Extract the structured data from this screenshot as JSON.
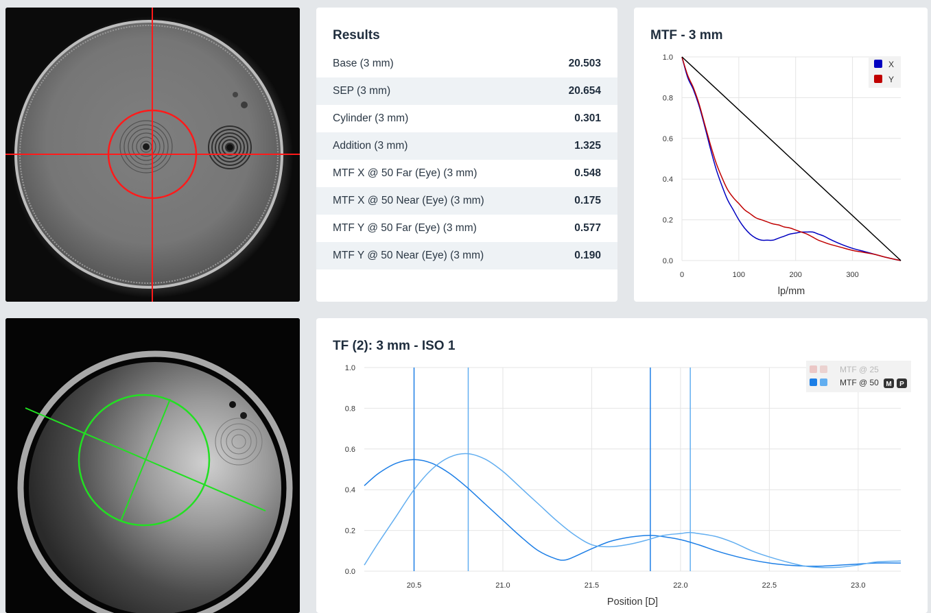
{
  "results": {
    "title": "Results",
    "rows": [
      {
        "label": "Base (3 mm)",
        "value": "20.503"
      },
      {
        "label": "SEP (3 mm)",
        "value": "20.654"
      },
      {
        "label": "Cylinder (3 mm)",
        "value": "0.301"
      },
      {
        "label": "Addition (3 mm)",
        "value": "1.325"
      },
      {
        "label": "MTF X @ 50 Far (Eye) (3 mm)",
        "value": "0.548"
      },
      {
        "label": "MTF X @ 50 Near (Eye) (3 mm)",
        "value": "0.175"
      },
      {
        "label": "MTF Y @ 50 Far (Eye) (3 mm)",
        "value": "0.577"
      },
      {
        "label": "MTF Y @ 50 Near (Eye) (3 mm)",
        "value": "0.190"
      }
    ]
  },
  "chart_data": [
    {
      "type": "line",
      "title": "MTF - 3 mm",
      "xlabel": "lp/mm",
      "ylabel": "",
      "xlim": [
        0,
        385
      ],
      "ylim": [
        0,
        1
      ],
      "xticks": [
        "0",
        "100",
        "200",
        "300"
      ],
      "yticks": [
        "0.0",
        "0.2",
        "0.4",
        "0.6",
        "0.8",
        "1.0"
      ],
      "grid": true,
      "legend": "top-right",
      "series": [
        {
          "name": "X",
          "color": "#0000c0",
          "x": [
            0,
            10,
            20,
            30,
            40,
            50,
            60,
            70,
            80,
            90,
            100,
            110,
            120,
            130,
            140,
            150,
            160,
            170,
            180,
            190,
            200,
            210,
            220,
            230,
            240,
            250,
            260,
            280,
            300,
            320,
            340,
            360,
            385
          ],
          "y": [
            1.0,
            0.9,
            0.84,
            0.76,
            0.66,
            0.55,
            0.45,
            0.37,
            0.3,
            0.25,
            0.2,
            0.16,
            0.13,
            0.11,
            0.1,
            0.1,
            0.1,
            0.11,
            0.12,
            0.13,
            0.135,
            0.14,
            0.14,
            0.14,
            0.13,
            0.12,
            0.105,
            0.08,
            0.06,
            0.045,
            0.03,
            0.015,
            0.0
          ]
        },
        {
          "name": "Y",
          "color": "#c00000",
          "x": [
            0,
            10,
            20,
            30,
            40,
            50,
            60,
            70,
            80,
            90,
            100,
            110,
            120,
            130,
            140,
            150,
            160,
            170,
            180,
            190,
            200,
            210,
            220,
            230,
            240,
            250,
            260,
            280,
            300,
            320,
            340,
            360,
            385
          ],
          "y": [
            1.0,
            0.91,
            0.85,
            0.77,
            0.67,
            0.57,
            0.48,
            0.41,
            0.35,
            0.31,
            0.28,
            0.25,
            0.23,
            0.21,
            0.2,
            0.19,
            0.18,
            0.175,
            0.165,
            0.16,
            0.15,
            0.14,
            0.13,
            0.115,
            0.1,
            0.09,
            0.08,
            0.065,
            0.05,
            0.04,
            0.03,
            0.015,
            0.0
          ]
        },
        {
          "name": "",
          "color": "#000000",
          "x": [
            0,
            385
          ],
          "y": [
            1.0,
            0.0
          ]
        }
      ]
    },
    {
      "type": "line",
      "title": "TF (2): 3 mm - ISO 1",
      "xlabel": "Position [D]",
      "ylabel": "",
      "xlim": [
        20.22,
        23.24
      ],
      "ylim": [
        0,
        1
      ],
      "xticks": [
        "20.5",
        "21.0",
        "21.5",
        "22.0",
        "22.5",
        "23.0"
      ],
      "yticks": [
        "0.0",
        "0.2",
        "0.4",
        "0.6",
        "0.8",
        "1.0"
      ],
      "grid": true,
      "legend": "top-right",
      "legend_entries": [
        {
          "label": "MTF @ 25",
          "colors": [
            "#e6a5a3",
            "#e6b8b6"
          ],
          "dimmed": true,
          "badges": []
        },
        {
          "label": "MTF @ 50",
          "colors": [
            "#1c7ee6",
            "#62aef0"
          ],
          "dimmed": false,
          "badges": [
            "M",
            "P"
          ]
        }
      ],
      "vlines": [
        {
          "x": 20.5,
          "color": "#1c7ee6"
        },
        {
          "x": 20.805,
          "color": "#62aef0"
        },
        {
          "x": 21.83,
          "color": "#1c7ee6"
        },
        {
          "x": 22.055,
          "color": "#62aef0"
        }
      ],
      "series": [
        {
          "name": "MTF @ 50",
          "color": "#1c7ee6",
          "x": [
            20.22,
            20.3,
            20.4,
            20.5,
            20.6,
            20.7,
            20.8,
            20.9,
            21.0,
            21.1,
            21.2,
            21.3,
            21.35,
            21.4,
            21.5,
            21.6,
            21.7,
            21.8,
            21.85,
            21.9,
            22.0,
            22.1,
            22.2,
            22.3,
            22.4,
            22.5,
            22.6,
            22.7,
            22.8,
            22.9,
            23.0,
            23.1,
            23.24
          ],
          "y": [
            0.42,
            0.48,
            0.53,
            0.548,
            0.53,
            0.48,
            0.41,
            0.33,
            0.25,
            0.17,
            0.1,
            0.06,
            0.055,
            0.07,
            0.11,
            0.145,
            0.165,
            0.175,
            0.175,
            0.17,
            0.155,
            0.13,
            0.1,
            0.075,
            0.055,
            0.04,
            0.03,
            0.025,
            0.025,
            0.03,
            0.035,
            0.04,
            0.04
          ]
        },
        {
          "name": "MTF @ 50",
          "color": "#62aef0",
          "x": [
            20.22,
            20.3,
            20.4,
            20.5,
            20.6,
            20.7,
            20.8,
            20.9,
            21.0,
            21.1,
            21.2,
            21.3,
            21.4,
            21.5,
            21.6,
            21.7,
            21.8,
            21.9,
            22.0,
            22.05,
            22.1,
            22.2,
            22.3,
            22.4,
            22.5,
            22.6,
            22.7,
            22.8,
            22.9,
            23.0,
            23.1,
            23.24
          ],
          "y": [
            0.03,
            0.14,
            0.27,
            0.4,
            0.5,
            0.56,
            0.577,
            0.55,
            0.49,
            0.41,
            0.33,
            0.25,
            0.18,
            0.13,
            0.12,
            0.13,
            0.15,
            0.175,
            0.185,
            0.19,
            0.185,
            0.17,
            0.14,
            0.1,
            0.07,
            0.045,
            0.025,
            0.018,
            0.02,
            0.03,
            0.045,
            0.05
          ]
        }
      ]
    }
  ]
}
